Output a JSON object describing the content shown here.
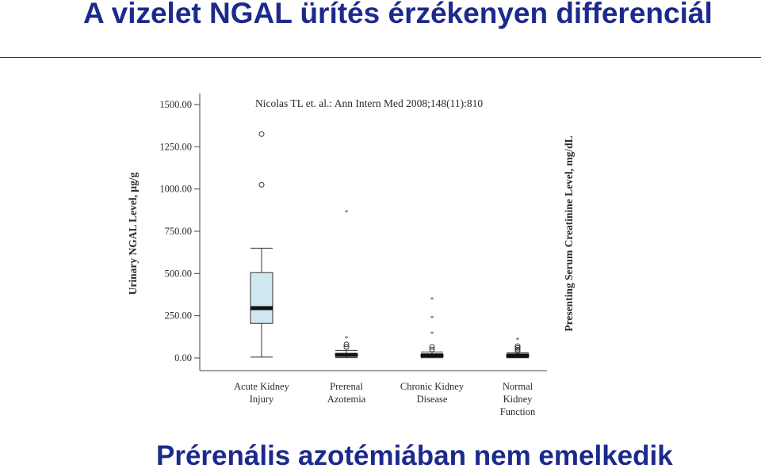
{
  "slide": {
    "title": "A vizelet NGAL ürítés érzékenyen differenciál",
    "subtitle": "Prérenális azotémiában nem emelkedik",
    "title_color": "#1c2a8c"
  },
  "chart_data": {
    "type": "boxplot",
    "annotation": "Nicolas TL et. al.: Ann Intern Med 2008;148(11):810",
    "ylabel": "Urinary NGAL Level, μg/g",
    "ylabel_right": "Presenting Serum Creatinine Level, mg/dL",
    "ylim": [
      0,
      1500
    ],
    "yticks": [
      "0.00",
      "250.00",
      "500.00",
      "750.00",
      "1000.00",
      "1250.00",
      "1500.00"
    ],
    "ytick_values": [
      0,
      250,
      500,
      750,
      1000,
      1250,
      1500
    ],
    "box_color": "#cfe8ef",
    "categories": [
      {
        "label": [
          "Acute Kidney",
          "Injury"
        ],
        "whisker_low": 5,
        "q1": 205,
        "median": 295,
        "q3": 505,
        "whisker_high": 650,
        "outliers": [
          {
            "value": 1325,
            "marker": "circle"
          },
          {
            "value": 1025,
            "marker": "circle"
          }
        ]
      },
      {
        "label": [
          "Prerenal",
          "Azotemia"
        ],
        "whisker_low": 2,
        "q1": 10,
        "median": 18,
        "q3": 25,
        "whisker_high": 45,
        "outliers": [
          {
            "value": 860,
            "marker": "star"
          },
          {
            "value": 115,
            "marker": "star"
          },
          {
            "value": 80,
            "marker": "circle"
          },
          {
            "value": 65,
            "marker": "circle"
          }
        ]
      },
      {
        "label": [
          "Chronic Kidney",
          "Disease"
        ],
        "whisker_low": 1,
        "q1": 8,
        "median": 15,
        "q3": 22,
        "whisker_high": 35,
        "outliers": [
          {
            "value": 345,
            "marker": "star"
          },
          {
            "value": 235,
            "marker": "star"
          },
          {
            "value": 140,
            "marker": "star"
          },
          {
            "value": 65,
            "marker": "circle"
          },
          {
            "value": 50,
            "marker": "circle"
          }
        ]
      },
      {
        "label": [
          "Normal",
          "Kidney",
          "Function"
        ],
        "whisker_low": 1,
        "q1": 8,
        "median": 14,
        "q3": 20,
        "whisker_high": 30,
        "outliers": [
          {
            "value": 105,
            "marker": "star"
          },
          {
            "value": 70,
            "marker": "circle"
          },
          {
            "value": 60,
            "marker": "circle"
          },
          {
            "value": 50,
            "marker": "circle"
          },
          {
            "value": 40,
            "marker": "circle"
          }
        ]
      }
    ]
  }
}
